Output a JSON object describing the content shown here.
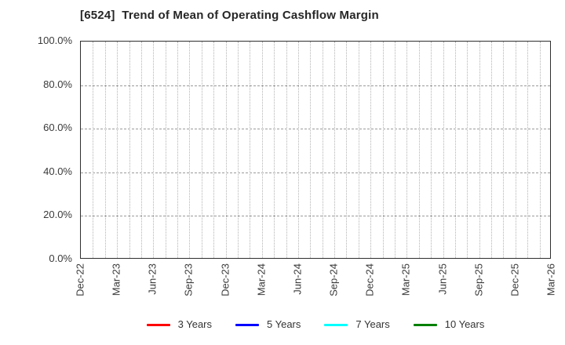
{
  "title": "[6524]  Trend of Mean of Operating Cashflow Margin",
  "chart_data": {
    "type": "line",
    "title": "[6524]  Trend of Mean of Operating Cashflow Margin",
    "x_tick_labels": [
      "Dec-22",
      "Mar-23",
      "Jun-23",
      "Sep-23",
      "Dec-23",
      "Mar-24",
      "Jun-24",
      "Sep-24",
      "Dec-24",
      "Mar-25",
      "Jun-25",
      "Sep-25",
      "Dec-25",
      "Mar-26"
    ],
    "x_minor_gridline_count": 39,
    "x_months_per_labeled_tick": 3,
    "y_tick_labels": [
      "0.0%",
      "20.0%",
      "40.0%",
      "60.0%",
      "80.0%",
      "100.0%"
    ],
    "ylim": [
      0,
      100
    ],
    "y_tick_step": 20,
    "grid": "on",
    "legend_position": "bottom",
    "series": [
      {
        "name": "3 Years",
        "color": "#ff0000",
        "values": []
      },
      {
        "name": "5 Years",
        "color": "#0000ff",
        "values": []
      },
      {
        "name": "7 Years",
        "color": "#00ffff",
        "values": []
      },
      {
        "name": "10 Years",
        "color": "#008000",
        "values": []
      }
    ],
    "note": "plot area contains no drawn data points"
  },
  "colors": {
    "plot_border": "#2e2e2e",
    "vertical_grid": "#b4b4b4",
    "horizontal_grid": "#9a9a9a",
    "axis_text": "#3a3a3a",
    "title_text": "#262626"
  }
}
